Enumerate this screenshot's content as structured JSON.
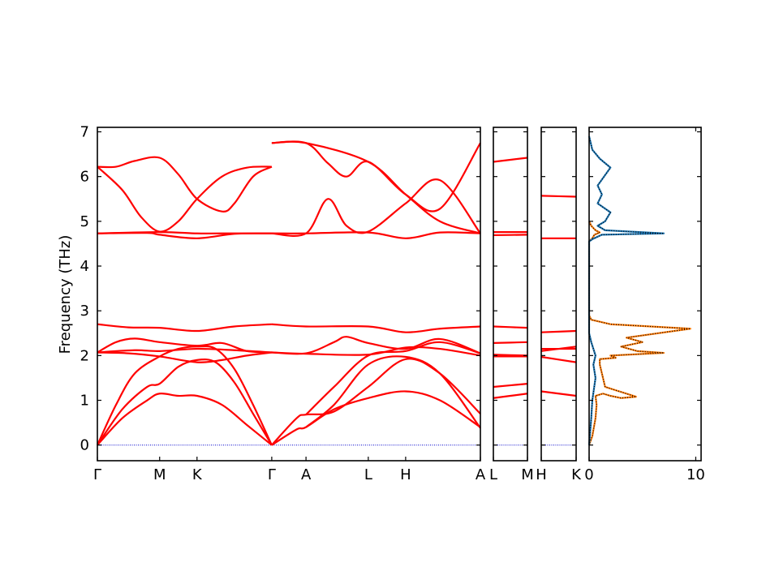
{
  "chart_data": {
    "type": "line",
    "ylabel": "Frequency (THz)",
    "ylim": [
      -0.35,
      7.1
    ],
    "yticks": [
      "0",
      "1",
      "2",
      "3",
      "4",
      "5",
      "6",
      "7"
    ],
    "band_color": "#ff0000",
    "zero_line_color": "#0000cc",
    "band_panels": [
      {
        "labels": [
          {
            "pos": 0.0,
            "text": "Γ"
          },
          {
            "pos": 1.0,
            "text": "M"
          },
          {
            "pos": 1.6,
            "text": "K"
          },
          {
            "pos": 2.8,
            "text": "Γ"
          },
          {
            "pos": 3.35,
            "text": "A"
          },
          {
            "pos": 4.35,
            "text": "L"
          },
          {
            "pos": 4.95,
            "text": "H"
          },
          {
            "pos": 6.15,
            "text": "A"
          }
        ],
        "xrange": [
          0,
          6.15
        ],
        "bands": [
          [
            [
              0,
              0
            ],
            [
              0.4,
              0.6
            ],
            [
              0.8,
              1.0
            ],
            [
              1.0,
              1.15
            ],
            [
              1.3,
              1.1
            ],
            [
              1.6,
              1.1
            ],
            [
              2.0,
              0.9
            ],
            [
              2.4,
              0.45
            ],
            [
              2.8,
              0
            ]
          ],
          [
            [
              0,
              0
            ],
            [
              0.4,
              0.8
            ],
            [
              0.8,
              1.3
            ],
            [
              1.0,
              1.37
            ],
            [
              1.3,
              1.75
            ],
            [
              1.6,
              1.9
            ],
            [
              1.9,
              1.85
            ],
            [
              2.2,
              1.4
            ],
            [
              2.5,
              0.7
            ],
            [
              2.8,
              0
            ]
          ],
          [
            [
              0,
              0
            ],
            [
              0.3,
              0.9
            ],
            [
              0.6,
              1.6
            ],
            [
              1.0,
              1.98
            ],
            [
              1.3,
              2.15
            ],
            [
              1.6,
              2.2
            ],
            [
              1.9,
              2.15
            ],
            [
              2.2,
              1.7
            ],
            [
              2.5,
              0.9
            ],
            [
              2.8,
              0
            ]
          ],
          [
            [
              0,
              2.07
            ],
            [
              0.5,
              2.05
            ],
            [
              1.0,
              1.98
            ],
            [
              1.6,
              1.85
            ],
            [
              2.0,
              1.9
            ],
            [
              2.4,
              2.0
            ],
            [
              2.8,
              2.07
            ]
          ],
          [
            [
              0,
              2.07
            ],
            [
              0.6,
              2.12
            ],
            [
              1.0,
              2.1
            ],
            [
              1.6,
              2.15
            ],
            [
              2.2,
              2.12
            ],
            [
              2.8,
              2.07
            ]
          ],
          [
            [
              0,
              2.07
            ],
            [
              0.3,
              2.3
            ],
            [
              0.6,
              2.38
            ],
            [
              1.0,
              2.3
            ],
            [
              1.6,
              2.22
            ],
            [
              2.0,
              2.28
            ],
            [
              2.4,
              2.1
            ],
            [
              2.8,
              2.07
            ]
          ],
          [
            [
              0,
              2.7
            ],
            [
              0.5,
              2.63
            ],
            [
              1.0,
              2.62
            ],
            [
              1.6,
              2.55
            ],
            [
              2.2,
              2.65
            ],
            [
              2.8,
              2.7
            ]
          ],
          [
            [
              0,
              4.73
            ],
            [
              0.8,
              4.74
            ],
            [
              1.0,
              4.7
            ],
            [
              1.6,
              4.62
            ],
            [
              2.2,
              4.72
            ],
            [
              2.8,
              4.73
            ]
          ],
          [
            [
              0,
              4.73
            ],
            [
              1.0,
              4.76
            ],
            [
              1.6,
              4.73
            ],
            [
              2.0,
              4.73
            ],
            [
              2.8,
              4.73
            ]
          ],
          [
            [
              0,
              6.22
            ],
            [
              0.3,
              6.22
            ],
            [
              0.6,
              6.35
            ],
            [
              1.0,
              6.42
            ],
            [
              1.3,
              6.05
            ],
            [
              1.6,
              5.5
            ],
            [
              2.0,
              5.22
            ],
            [
              2.2,
              5.4
            ],
            [
              2.5,
              6.0
            ],
            [
              2.8,
              6.22
            ]
          ],
          [
            [
              0,
              6.22
            ],
            [
              0.4,
              5.7
            ],
            [
              0.7,
              5.1
            ],
            [
              1.0,
              4.77
            ],
            [
              1.3,
              5.0
            ],
            [
              1.6,
              5.5
            ],
            [
              2.0,
              6.0
            ],
            [
              2.4,
              6.2
            ],
            [
              2.8,
              6.22
            ]
          ],
          [
            [
              2.8,
              0
            ],
            [
              3.2,
              0.35
            ],
            [
              3.35,
              0.4
            ],
            [
              3.8,
              0.8
            ],
            [
              4.35,
              1.05
            ],
            [
              4.95,
              1.2
            ],
            [
              5.5,
              1.0
            ],
            [
              6.15,
              0.4
            ]
          ],
          [
            [
              2.8,
              0
            ],
            [
              3.2,
              0.6
            ],
            [
              3.35,
              0.68
            ],
            [
              3.8,
              0.75
            ],
            [
              4.35,
              1.3
            ],
            [
              4.95,
              1.92
            ],
            [
              5.5,
              1.6
            ],
            [
              6.15,
              0.7
            ]
          ],
          [
            [
              3.35,
              0.4
            ],
            [
              3.8,
              0.9
            ],
            [
              4.35,
              1.8
            ],
            [
              4.95,
              1.97
            ],
            [
              5.5,
              1.6
            ],
            [
              6.15,
              0.38
            ]
          ],
          [
            [
              3.35,
              0.68
            ],
            [
              3.8,
              1.3
            ],
            [
              4.35,
              2.0
            ],
            [
              4.95,
              2.1
            ],
            [
              5.5,
              2.3
            ],
            [
              6.15,
              2.05
            ]
          ],
          [
            [
              2.8,
              2.07
            ],
            [
              3.35,
              2.04
            ],
            [
              4.35,
              2.02
            ],
            [
              4.95,
              2.18
            ],
            [
              5.5,
              2.15
            ],
            [
              6.15,
              2.0
            ]
          ],
          [
            [
              2.8,
              2.07
            ],
            [
              3.35,
              2.05
            ],
            [
              3.8,
              2.3
            ],
            [
              4.0,
              2.42
            ],
            [
              4.35,
              2.28
            ],
            [
              4.95,
              2.15
            ],
            [
              5.5,
              2.37
            ],
            [
              6.15,
              2.05
            ]
          ],
          [
            [
              2.8,
              2.7
            ],
            [
              3.35,
              2.65
            ],
            [
              4.35,
              2.65
            ],
            [
              4.95,
              2.52
            ],
            [
              5.5,
              2.6
            ],
            [
              6.15,
              2.65
            ]
          ],
          [
            [
              2.8,
              4.73
            ],
            [
              3.35,
              4.73
            ],
            [
              4.35,
              4.75
            ],
            [
              4.95,
              4.62
            ],
            [
              5.5,
              4.75
            ],
            [
              6.15,
              4.73
            ]
          ],
          [
            [
              2.8,
              4.73
            ],
            [
              3.35,
              4.73
            ],
            [
              3.7,
              5.5
            ],
            [
              4.0,
              4.9
            ],
            [
              4.35,
              4.77
            ],
            [
              4.95,
              5.4
            ],
            [
              5.5,
              5.92
            ],
            [
              6.15,
              4.73
            ]
          ],
          [
            [
              2.8,
              6.75
            ],
            [
              3.35,
              6.75
            ],
            [
              3.7,
              6.3
            ],
            [
              4.0,
              6.0
            ],
            [
              4.35,
              6.33
            ],
            [
              4.95,
              5.6
            ],
            [
              5.5,
              5.28
            ],
            [
              6.15,
              6.75
            ]
          ],
          [
            [
              2.8,
              6.75
            ],
            [
              3.35,
              6.75
            ],
            [
              4.35,
              6.33
            ],
            [
              4.95,
              5.6
            ],
            [
              5.5,
              5.0
            ],
            [
              6.15,
              4.73
            ]
          ]
        ]
      },
      {
        "labels": [
          {
            "pos": 0.0,
            "text": "L"
          },
          {
            "pos": 1.0,
            "text": "M"
          }
        ],
        "xrange": [
          0,
          1
        ],
        "bands": [
          [
            [
              0,
              1.05
            ],
            [
              1,
              1.15
            ]
          ],
          [
            [
              0,
              1.3
            ],
            [
              1,
              1.37
            ]
          ],
          [
            [
              0,
              1.98
            ],
            [
              1,
              1.98
            ]
          ],
          [
            [
              0,
              2.02
            ],
            [
              1,
              2.0
            ]
          ],
          [
            [
              0,
              2.28
            ],
            [
              1,
              2.3
            ]
          ],
          [
            [
              0,
              2.65
            ],
            [
              1,
              2.62
            ]
          ],
          [
            [
              0,
              4.69
            ],
            [
              1,
              4.7
            ]
          ],
          [
            [
              0,
              4.76
            ],
            [
              1,
              4.76
            ]
          ],
          [
            [
              0,
              6.33
            ],
            [
              1,
              6.42
            ]
          ]
        ]
      },
      {
        "labels": [
          {
            "pos": 0.0,
            "text": "H"
          },
          {
            "pos": 1.0,
            "text": "K"
          }
        ],
        "xrange": [
          0,
          1
        ],
        "bands": [
          [
            [
              0,
              1.2
            ],
            [
              1,
              1.1
            ]
          ],
          [
            [
              0,
              1.97
            ],
            [
              1,
              1.85
            ]
          ],
          [
            [
              0,
              2.1
            ],
            [
              1,
              2.2
            ]
          ],
          [
            [
              0,
              2.15
            ],
            [
              1,
              2.15
            ]
          ],
          [
            [
              0,
              2.52
            ],
            [
              1,
              2.55
            ]
          ],
          [
            [
              0,
              4.62
            ],
            [
              1,
              4.62
            ]
          ],
          [
            [
              0,
              5.57
            ],
            [
              1,
              5.55
            ]
          ]
        ]
      }
    ],
    "dos": {
      "xlim": [
        0,
        10.5
      ],
      "xticks": [
        "0",
        "10"
      ],
      "series": [
        {
          "color": "#ff7f0e",
          "points": [
            [
              0,
              0
            ],
            [
              0.3,
              0.2
            ],
            [
              0.6,
              0.6
            ],
            [
              0.7,
              0.9
            ],
            [
              0.6,
              1.1
            ],
            [
              1.3,
              1.15
            ],
            [
              2.0,
              1.1
            ],
            [
              3.0,
              1.05
            ],
            [
              4.4,
              1.08
            ],
            [
              1.5,
              1.3
            ],
            [
              1.3,
              1.5
            ],
            [
              1.0,
              1.8
            ],
            [
              1.0,
              1.92
            ],
            [
              2.5,
              1.95
            ],
            [
              2.0,
              2.0
            ],
            [
              7.0,
              2.06
            ],
            [
              4.5,
              2.1
            ],
            [
              3.0,
              2.2
            ],
            [
              5.0,
              2.3
            ],
            [
              3.5,
              2.4
            ],
            [
              9.5,
              2.6
            ],
            [
              2.0,
              2.7
            ],
            [
              0.2,
              2.8
            ],
            [
              0,
              2.9
            ],
            [
              0,
              4.55
            ],
            [
              0.3,
              4.62
            ],
            [
              0.5,
              4.7
            ],
            [
              1.0,
              4.75
            ],
            [
              0.6,
              4.8
            ],
            [
              0.2,
              4.9
            ],
            [
              0,
              5.0
            ]
          ]
        },
        {
          "color": "#1f77b4",
          "points": [
            [
              0,
              0
            ],
            [
              0.1,
              0.3
            ],
            [
              0.2,
              0.6
            ],
            [
              0.3,
              1.0
            ],
            [
              0.6,
              1.5
            ],
            [
              0.4,
              1.8
            ],
            [
              0.6,
              2.0
            ],
            [
              0.2,
              2.3
            ],
            [
              0,
              2.5
            ],
            [
              0,
              4.55
            ],
            [
              0.3,
              4.6
            ],
            [
              1.2,
              4.7
            ],
            [
              7.0,
              4.73
            ],
            [
              1.5,
              4.8
            ],
            [
              0.8,
              4.9
            ],
            [
              1.5,
              5.0
            ],
            [
              2.0,
              5.2
            ],
            [
              0.8,
              5.4
            ],
            [
              1.2,
              5.6
            ],
            [
              0.8,
              5.8
            ],
            [
              2.0,
              6.2
            ],
            [
              1.0,
              6.4
            ],
            [
              0.3,
              6.6
            ],
            [
              0.1,
              6.8
            ],
            [
              0,
              6.9
            ]
          ]
        }
      ]
    }
  }
}
